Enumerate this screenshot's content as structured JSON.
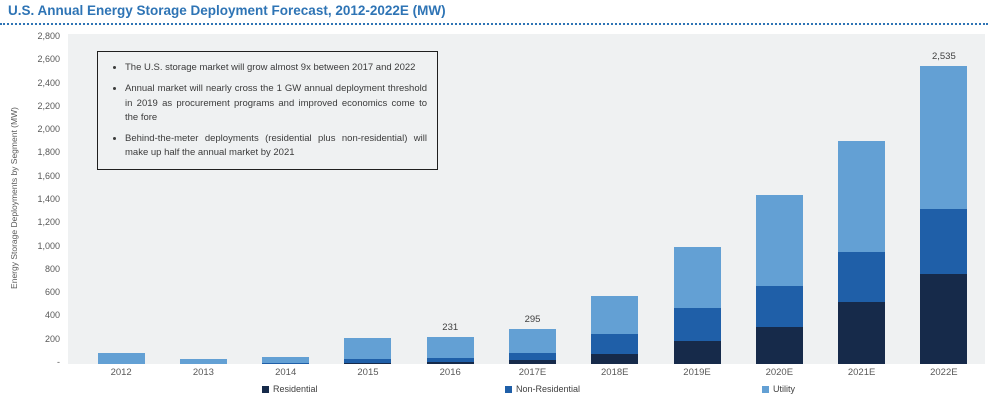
{
  "title": "U.S. Annual Energy Storage Deployment Forecast, 2012-2022E (MW)",
  "colors": {
    "title_blue": "#2E74B5",
    "residential": "#162A4A",
    "non_residential": "#1F5FA8",
    "utility": "#63A0D4",
    "plot_background": "#EFF1F2",
    "axis_text": "#595959",
    "data_label_text": "#404040",
    "annotation_border": "#1F1F1F"
  },
  "annotation_box": {
    "bullets": [
      "The U.S. storage market will grow almost 9x between 2017 and 2022",
      "Annual market will nearly cross the 1 GW annual deployment threshold in 2019 as procurement programs and improved economics come to the fore",
      "Behind-the-meter deployments (residential plus non-residential) will make up half the annual market by 2021"
    ]
  },
  "chart_data": {
    "type": "bar",
    "stacked": true,
    "title": "U.S. Annual Energy Storage Deployment Forecast, 2012-2022E (MW)",
    "xlabel": "",
    "ylabel": "Energy Storage Deployments by Segment (MW)",
    "ylim": [
      0,
      2800
    ],
    "ytick_interval": 200,
    "ytick_labels": [
      "2,800",
      "2,600",
      "2,400",
      "2,200",
      "2,000",
      "1,800",
      "1,600",
      "1,400",
      "1,200",
      "1,000",
      "800",
      "600",
      "400",
      "200",
      "-"
    ],
    "grid": false,
    "legend_position": "bottom",
    "categories": [
      "2012",
      "2013",
      "2014",
      "2015",
      "2016",
      "2017E",
      "2018E",
      "2019E",
      "2020E",
      "2021E",
      "2022E"
    ],
    "series": [
      {
        "name": "Residential",
        "color": "#162A4A",
        "values": [
          0,
          0,
          0,
          5,
          15,
          35,
          85,
          195,
          315,
          530,
          765
        ]
      },
      {
        "name": "Non-Residential",
        "color": "#1F5FA8",
        "values": [
          0,
          0,
          5,
          35,
          35,
          60,
          170,
          280,
          350,
          425,
          555
        ]
      },
      {
        "name": "Utility",
        "color": "#63A0D4",
        "values": [
          90,
          45,
          55,
          181,
          181,
          200,
          320,
          520,
          775,
          945,
          1215
        ]
      }
    ],
    "totals": [
      90,
      45,
      60,
      221,
      231,
      295,
      575,
      995,
      1440,
      1900,
      2535
    ],
    "total_labels": [
      "",
      "",
      "",
      "",
      "231",
      "295",
      "",
      "",
      "",
      "",
      "2,535"
    ]
  },
  "legend": {
    "items": [
      {
        "label": "Residential",
        "color": "#162A4A"
      },
      {
        "label": "Non-Residential",
        "color": "#1F5FA8"
      },
      {
        "label": "Utility",
        "color": "#63A0D4"
      }
    ]
  }
}
